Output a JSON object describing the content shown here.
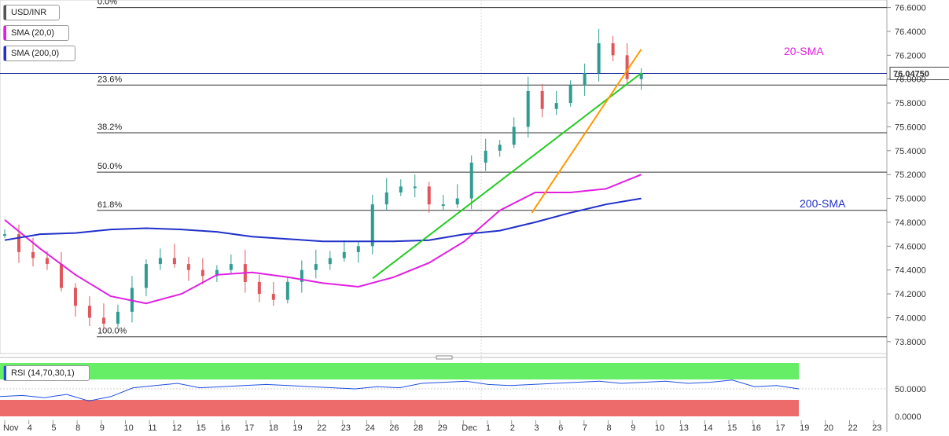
{
  "legend": {
    "symbol": "USD/INR",
    "sma20_label": "SMA (20,0)",
    "sma200_label": "SMA (200,0)",
    "rsi_label": "RSI (14,70,30,1)"
  },
  "colors": {
    "candle_up": "#2e9c91",
    "candle_down": "#e0565b",
    "sma20": "#e020e0",
    "sma200": "#2030c8",
    "trend_green": "#22cc22",
    "trend_orange": "#ff9900",
    "price_line": "#2030a0",
    "rsi_line": "#2050e0",
    "rsi_overbought": "#66ee66",
    "rsi_oversold": "#ee6b6b"
  },
  "chart_data": [
    {
      "type": "candlestick",
      "title": "USD/INR",
      "current_price": "76.04750",
      "ylim": [
        73.7,
        76.65
      ],
      "y_ticks": [
        "76.6000",
        "76.4000",
        "76.2000",
        "76.0000",
        "75.8000",
        "75.6000",
        "75.4000",
        "75.2000",
        "75.0000",
        "74.8000",
        "74.6000",
        "74.4000",
        "74.2000",
        "74.0000",
        "73.8000"
      ],
      "x_ticks": [
        "Nov",
        "4",
        "5",
        "8",
        "9",
        "10",
        "11",
        "12",
        "15",
        "16",
        "17",
        "18",
        "19",
        "22",
        "23",
        "24",
        "26",
        "28",
        "29",
        "Dec",
        "1",
        "2",
        "3",
        "6",
        "7",
        "8",
        "9",
        "10",
        "13",
        "14",
        "15",
        "16",
        "17",
        "19",
        "20",
        "22",
        "23"
      ],
      "fibonacci": [
        {
          "label": "0.0%",
          "value": 76.6
        },
        {
          "label": "23.6%",
          "value": 75.95
        },
        {
          "label": "38.2%",
          "value": 75.55
        },
        {
          "label": "50.0%",
          "value": 75.22
        },
        {
          "label": "61.8%",
          "value": 74.9
        },
        {
          "label": "100.0%",
          "value": 73.84
        }
      ],
      "annotations": [
        {
          "text": "20-SMA",
          "series": "sma20"
        },
        {
          "text": "200-SMA",
          "series": "sma200"
        }
      ],
      "series": [
        {
          "name": "SMA (20,0)",
          "x": [
            0,
            2,
            4,
            6,
            8,
            10,
            12,
            14,
            16,
            18,
            20,
            22,
            24,
            26,
            28,
            30,
            32,
            34,
            36
          ],
          "values": [
            74.82,
            74.58,
            74.36,
            74.18,
            74.12,
            74.2,
            74.36,
            74.38,
            74.34,
            74.29,
            74.26,
            74.34,
            74.46,
            74.64,
            74.9,
            75.05,
            75.05,
            75.08,
            75.2
          ]
        },
        {
          "name": "SMA (200,0)",
          "x": [
            0,
            2,
            4,
            6,
            8,
            10,
            12,
            14,
            16,
            18,
            20,
            22,
            24,
            26,
            28,
            30,
            32,
            34,
            36
          ],
          "values": [
            74.65,
            74.7,
            74.71,
            74.74,
            74.75,
            74.74,
            74.72,
            74.68,
            74.66,
            74.64,
            74.64,
            74.64,
            74.65,
            74.7,
            74.73,
            74.8,
            74.88,
            74.95,
            75.0
          ]
        }
      ],
      "trendlines": [
        {
          "name": "green",
          "from": [
            18.5,
            74.33
          ],
          "to": [
            32.0,
            76.05
          ]
        },
        {
          "name": "orange",
          "from": [
            26.5,
            74.88
          ],
          "to": [
            32.0,
            76.25
          ]
        }
      ]
    },
    {
      "type": "line",
      "title": "RSI (14,70,30,1)",
      "ylim": [
        0,
        100
      ],
      "y_ticks": [
        "50.0000",
        "0.0000"
      ],
      "overbought": 70,
      "oversold": 30,
      "values": [
        36,
        38,
        34,
        40,
        28,
        36,
        52,
        56,
        60,
        52,
        54,
        56,
        58,
        56,
        54,
        52,
        50,
        54,
        52,
        60,
        62,
        64,
        58,
        56,
        58,
        60,
        62,
        64,
        60,
        62,
        64,
        60,
        62,
        66,
        54,
        56,
        50
      ]
    }
  ]
}
